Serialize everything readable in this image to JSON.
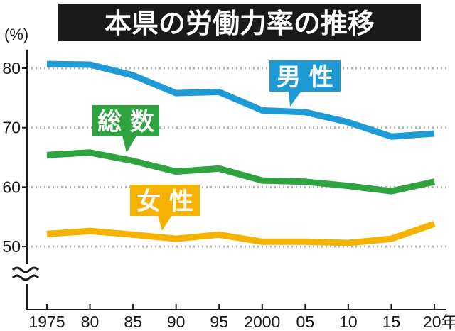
{
  "title": "本県の労働力率の推移",
  "chart_data": {
    "type": "line",
    "title": "本県の労働力率の推移",
    "unit_label": "(%)",
    "categories": [
      "1975",
      "80",
      "85",
      "90",
      "95",
      "2000",
      "05",
      "10",
      "15",
      "20年"
    ],
    "series": [
      {
        "name": "男 性",
        "color": "#1e9ad6",
        "values": [
          80.7,
          80.6,
          78.8,
          75.8,
          76.0,
          72.9,
          72.6,
          70.9,
          68.5,
          69.0
        ]
      },
      {
        "name": "総 数",
        "color": "#2ea33f",
        "values": [
          65.4,
          65.8,
          64.4,
          62.6,
          63.1,
          61.1,
          60.9,
          60.2,
          59.3,
          60.9
        ]
      },
      {
        "name": "女 性",
        "color": "#f5b200",
        "values": [
          52.1,
          52.6,
          52.0,
          51.3,
          52.0,
          50.8,
          50.8,
          50.6,
          51.3,
          53.8
        ]
      }
    ],
    "yticks": [
      50,
      60,
      70,
      80
    ],
    "ylim": [
      40,
      83
    ],
    "axis_break": true,
    "grid": "dotted horizontal"
  }
}
